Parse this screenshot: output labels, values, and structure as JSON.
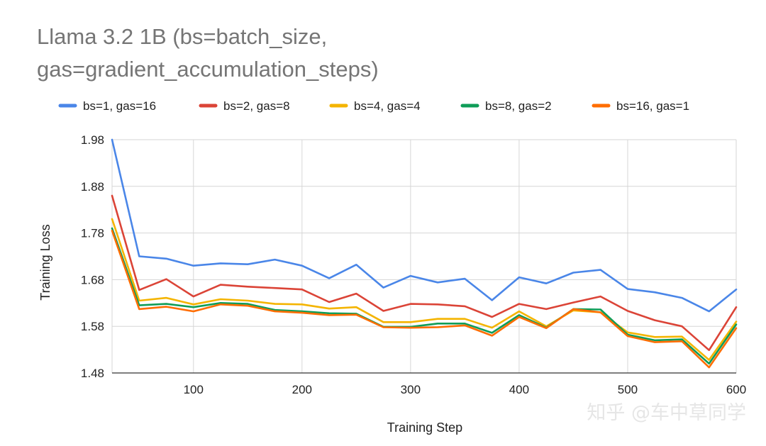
{
  "chart_data": {
    "type": "line",
    "title_lines": [
      "Llama 3.2 1B (bs=batch_size,",
      "gas=gradient_accumulation_steps)"
    ],
    "xlabel": "Training Step",
    "ylabel": "Training Loss",
    "xlim": [
      25,
      600
    ],
    "ylim": [
      1.48,
      1.98
    ],
    "x_ticks": [
      100,
      200,
      300,
      400,
      500,
      600
    ],
    "y_ticks": [
      1.48,
      1.58,
      1.68,
      1.78,
      1.88,
      1.98
    ],
    "y_tick_labels": [
      "1.48",
      "1.58",
      "1.68",
      "1.78",
      "1.88",
      "1.98"
    ],
    "grid": true,
    "legend_position": "top",
    "x": [
      25,
      50,
      75,
      100,
      125,
      150,
      175,
      200,
      225,
      250,
      275,
      300,
      325,
      350,
      375,
      400,
      425,
      450,
      475,
      500,
      525,
      550,
      575,
      600
    ],
    "series": [
      {
        "name": "bs=1, gas=16",
        "color": "#4a86e8",
        "values": [
          1.98,
          1.73,
          1.725,
          1.71,
          1.715,
          1.713,
          1.723,
          1.71,
          1.683,
          1.712,
          1.663,
          1.688,
          1.674,
          1.682,
          1.636,
          1.685,
          1.672,
          1.695,
          1.701,
          1.66,
          1.653,
          1.641,
          1.612,
          1.659
        ]
      },
      {
        "name": "bs=2, gas=8",
        "color": "#db4437",
        "values": [
          1.86,
          1.658,
          1.681,
          1.644,
          1.669,
          1.665,
          1.662,
          1.659,
          1.632,
          1.65,
          1.613,
          1.628,
          1.627,
          1.623,
          1.6,
          1.628,
          1.617,
          1.631,
          1.644,
          1.613,
          1.593,
          1.58,
          1.529,
          1.621
        ]
      },
      {
        "name": "bs=4, gas=4",
        "color": "#f4b400",
        "values": [
          1.81,
          1.635,
          1.641,
          1.627,
          1.638,
          1.635,
          1.628,
          1.627,
          1.618,
          1.621,
          1.589,
          1.589,
          1.596,
          1.596,
          1.577,
          1.612,
          1.58,
          1.614,
          1.61,
          1.567,
          1.557,
          1.558,
          1.508,
          1.59
        ]
      },
      {
        "name": "bs=8, gas=2",
        "color": "#0f9d58",
        "values": [
          1.79,
          1.625,
          1.628,
          1.621,
          1.63,
          1.628,
          1.615,
          1.612,
          1.608,
          1.607,
          1.579,
          1.579,
          1.586,
          1.586,
          1.566,
          1.604,
          1.577,
          1.617,
          1.616,
          1.562,
          1.55,
          1.552,
          1.5,
          1.584
        ]
      },
      {
        "name": "bs=16, gas=1",
        "color": "#ff6d01",
        "values": [
          1.785,
          1.617,
          1.622,
          1.612,
          1.627,
          1.624,
          1.612,
          1.609,
          1.604,
          1.605,
          1.578,
          1.577,
          1.578,
          1.582,
          1.56,
          1.6,
          1.576,
          1.617,
          1.61,
          1.559,
          1.546,
          1.548,
          1.492,
          1.576
        ]
      }
    ]
  },
  "watermark": {
    "text": "知乎 @车中草同学"
  }
}
